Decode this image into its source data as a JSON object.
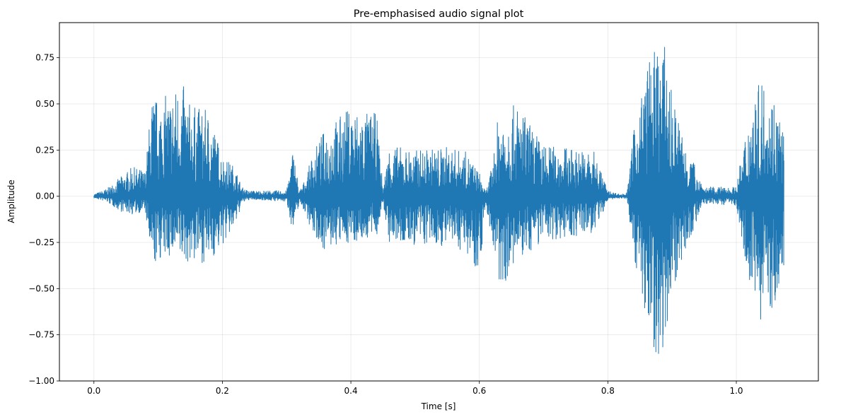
{
  "chart_data": {
    "type": "line",
    "title": "Pre-emphasised audio signal plot",
    "xlabel": "Time [s]",
    "ylabel": "Amplitude",
    "xlim": [
      -0.0537,
      1.1277
    ],
    "ylim": [
      -1.0,
      0.94
    ],
    "x_ticks": [
      0.0,
      0.2,
      0.4,
      0.6,
      0.8,
      1.0
    ],
    "x_tick_labels": [
      "0.0",
      "0.2",
      "0.4",
      "0.6",
      "0.8",
      "1.0"
    ],
    "y_ticks": [
      -1.0,
      -0.75,
      -0.5,
      -0.25,
      0.0,
      0.25,
      0.5,
      0.75
    ],
    "y_tick_labels": [
      "−1.00",
      "−0.75",
      "−0.50",
      "−0.25",
      "0.00",
      "0.25",
      "0.50",
      "0.75"
    ],
    "grid": true,
    "legend": "none",
    "series": [
      {
        "color": "#1f77b4",
        "duration_s": 1.074,
        "envelope": {
          "t": [
            0.0,
            0.02,
            0.04,
            0.06,
            0.08,
            0.09,
            0.1,
            0.12,
            0.135,
            0.15,
            0.18,
            0.2,
            0.22,
            0.23,
            0.24,
            0.26,
            0.3,
            0.31,
            0.32,
            0.33,
            0.34,
            0.36,
            0.38,
            0.4,
            0.42,
            0.44,
            0.45,
            0.46,
            0.5,
            0.55,
            0.58,
            0.6,
            0.61,
            0.62,
            0.63,
            0.66,
            0.7,
            0.75,
            0.78,
            0.8,
            0.82,
            0.83,
            0.84,
            0.86,
            0.88,
            0.89,
            0.9,
            0.92,
            0.95,
            1.0,
            1.02,
            1.04,
            1.06,
            1.074
          ],
          "max": [
            0.01,
            0.04,
            0.1,
            0.16,
            0.14,
            0.55,
            0.53,
            0.56,
            0.64,
            0.5,
            0.46,
            0.22,
            0.16,
            0.05,
            0.03,
            0.03,
            0.03,
            0.27,
            0.03,
            0.1,
            0.23,
            0.37,
            0.43,
            0.49,
            0.46,
            0.45,
            0.05,
            0.28,
            0.25,
            0.27,
            0.24,
            0.13,
            0.02,
            0.17,
            0.46,
            0.5,
            0.28,
            0.26,
            0.24,
            0.03,
            0.01,
            0.02,
            0.35,
            0.71,
            0.85,
            0.8,
            0.55,
            0.3,
            0.05,
            0.05,
            0.47,
            0.65,
            0.55,
            0.38
          ],
          "min": [
            -0.01,
            -0.03,
            -0.08,
            -0.1,
            -0.08,
            -0.41,
            -0.35,
            -0.33,
            -0.36,
            -0.36,
            -0.36,
            -0.27,
            -0.17,
            -0.04,
            -0.02,
            -0.02,
            -0.03,
            -0.2,
            -0.03,
            -0.1,
            -0.2,
            -0.3,
            -0.27,
            -0.25,
            -0.24,
            -0.22,
            -0.04,
            -0.26,
            -0.27,
            -0.27,
            -0.3,
            -0.42,
            -0.05,
            -0.25,
            -0.52,
            -0.36,
            -0.24,
            -0.22,
            -0.2,
            -0.02,
            -0.01,
            -0.02,
            -0.3,
            -0.72,
            -0.91,
            -0.75,
            -0.52,
            -0.3,
            -0.04,
            -0.05,
            -0.46,
            -0.69,
            -0.6,
            -0.4
          ]
        }
      }
    ]
  }
}
